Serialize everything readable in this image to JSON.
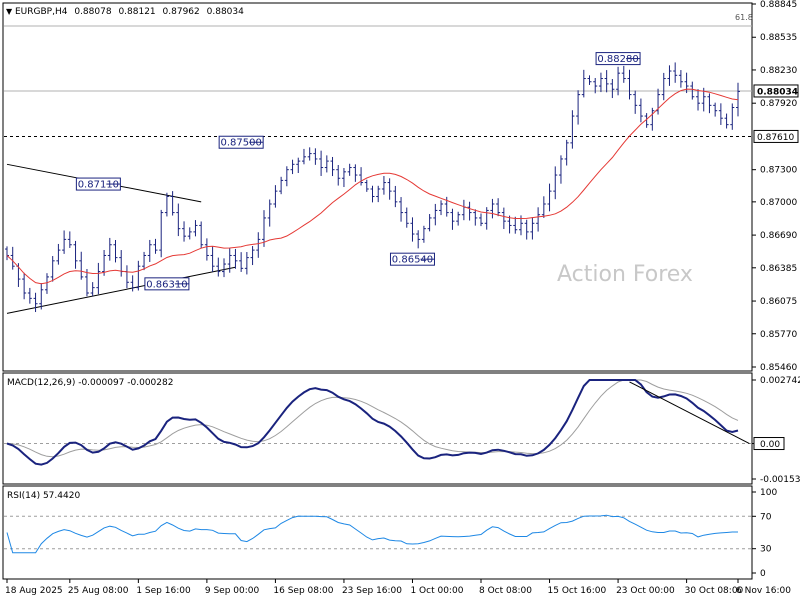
{
  "chart_data": {
    "type": "candlestick",
    "header": {
      "symbol": "EURGBP,H4",
      "ohlc": [
        "0.88078",
        "0.88121",
        "0.87962",
        "0.88034"
      ]
    },
    "watermark": "Action Forex",
    "fib_label": "61.8",
    "price_axis": {
      "ticks": [
        "0.88845",
        "0.88535",
        "0.88230",
        "0.87920",
        "0.87300",
        "0.87000",
        "0.86690",
        "0.86385",
        "0.86075",
        "0.85770",
        "0.85460"
      ],
      "range": [
        0.8546,
        0.88845
      ]
    },
    "price_tags": [
      {
        "label": "0.88034",
        "value": 0.88034,
        "style": "current"
      },
      {
        "label": "0.87610",
        "value": 0.8761,
        "style": "level"
      }
    ],
    "horizontal_lines": [
      {
        "value": 0.8864,
        "style": "solid"
      },
      {
        "value": 0.88034,
        "style": "solid"
      },
      {
        "value": 0.8761,
        "style": "dashed"
      }
    ],
    "annotations": [
      {
        "label": "0.87110",
        "value": 0.8711,
        "bar": 16
      },
      {
        "label": "0.86310",
        "value": 0.8631,
        "bar": 28
      },
      {
        "label": "0.87500",
        "value": 0.875,
        "bar": 41
      },
      {
        "label": "0.86540",
        "value": 0.8654,
        "bar": 71
      },
      {
        "label": "0.88280",
        "value": 0.8828,
        "bar": 107
      }
    ],
    "trendlines": [
      {
        "from": [
          0,
          0.8735
        ],
        "to": [
          34,
          0.87
        ]
      },
      {
        "from": [
          0,
          0.8596
        ],
        "to": [
          40,
          0.8639
        ]
      }
    ],
    "x_labels": [
      {
        "label": "18 Aug 2025",
        "bar": 0
      },
      {
        "label": "25 Aug 08:00",
        "bar": 11
      },
      {
        "label": "1 Sep 16:00",
        "bar": 23
      },
      {
        "label": "9 Sep 00:00",
        "bar": 35
      },
      {
        "label": "16 Sep 08:00",
        "bar": 47
      },
      {
        "label": "23 Sep 16:00",
        "bar": 59
      },
      {
        "label": "1 Oct 00:00",
        "bar": 71
      },
      {
        "label": "8 Oct 08:00",
        "bar": 83
      },
      {
        "label": "15 Oct 16:00",
        "bar": 95
      },
      {
        "label": "23 Oct 00:00",
        "bar": 107
      },
      {
        "label": "30 Oct 08:00",
        "bar": 119
      },
      {
        "label": "6 Nov 16:00",
        "bar": 128
      }
    ],
    "closes": [
      0.865,
      0.864,
      0.8628,
      0.8615,
      0.861,
      0.8605,
      0.8618,
      0.863,
      0.8645,
      0.8655,
      0.8665,
      0.866,
      0.8645,
      0.863,
      0.8615,
      0.862,
      0.8635,
      0.865,
      0.866,
      0.8648,
      0.8635,
      0.8625,
      0.862,
      0.864,
      0.865,
      0.866,
      0.8655,
      0.869,
      0.8705,
      0.869,
      0.8675,
      0.8668,
      0.8672,
      0.8678,
      0.866,
      0.865,
      0.864,
      0.8635,
      0.8642,
      0.865,
      0.8645,
      0.8638,
      0.8648,
      0.8655,
      0.8665,
      0.8685,
      0.8698,
      0.871,
      0.872,
      0.873,
      0.8735,
      0.8738,
      0.8742,
      0.8745,
      0.874,
      0.8732,
      0.8738,
      0.873,
      0.8722,
      0.8728,
      0.8732,
      0.8725,
      0.8718,
      0.8712,
      0.8705,
      0.8712,
      0.8718,
      0.871,
      0.87,
      0.869,
      0.868,
      0.867,
      0.8665,
      0.8675,
      0.8685,
      0.8692,
      0.8698,
      0.869,
      0.8682,
      0.8688,
      0.8695,
      0.869,
      0.8685,
      0.868,
      0.8692,
      0.8698,
      0.869,
      0.8682,
      0.8678,
      0.8674,
      0.868,
      0.8672,
      0.868,
      0.8688,
      0.8698,
      0.871,
      0.8725,
      0.874,
      0.8755,
      0.878,
      0.88,
      0.8815,
      0.8812,
      0.8808,
      0.8815,
      0.881,
      0.8805,
      0.882,
      0.8815,
      0.88,
      0.879,
      0.878,
      0.8772,
      0.8785,
      0.88,
      0.8815,
      0.8822,
      0.8818,
      0.8812,
      0.8808,
      0.8798,
      0.8792,
      0.8798,
      0.879,
      0.8785,
      0.8778,
      0.8772,
      0.8788,
      0.8803
    ],
    "ma_period": 20,
    "macd": {
      "label": "MACD(12,26,9) -0.000097 -0.000282",
      "ticks": [
        "0.002742",
        "0.00",
        "-0.001531"
      ],
      "current_tag": "0.00",
      "range": [
        -0.001531,
        0.002742
      ],
      "trendline": {
        "from": [
          109,
          0.00266
        ],
        "to": [
          130,
          0.0
        ]
      }
    },
    "rsi": {
      "label": "RSI(14) 57.4420",
      "ticks": [
        "100",
        "70",
        "30",
        "0"
      ],
      "levels": [
        70,
        30
      ],
      "period": 14
    }
  }
}
